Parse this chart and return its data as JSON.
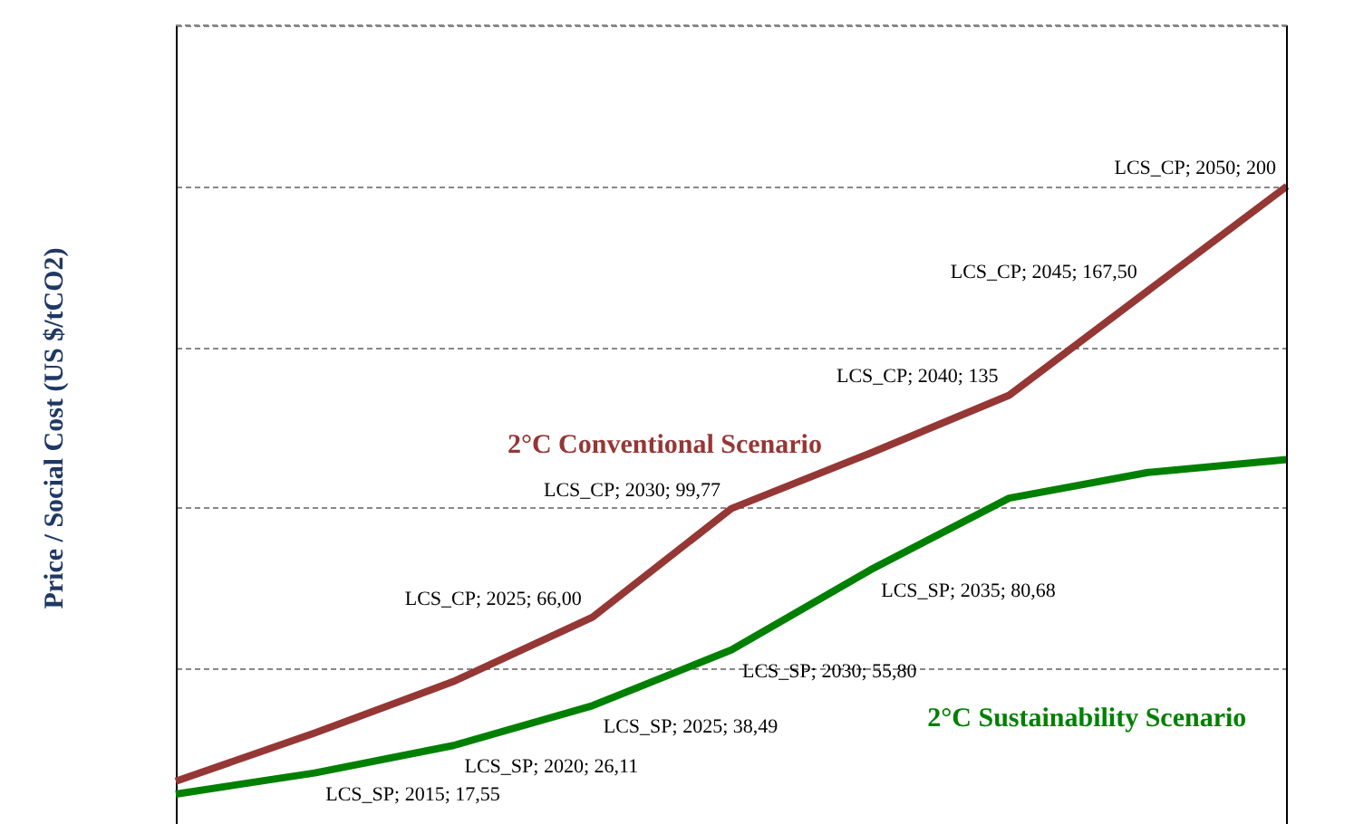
{
  "chart_data": {
    "type": "line",
    "ylabel": "Price / Social Cost  (US $/tCO2)",
    "categories": [
      null,
      null,
      null,
      null,
      null,
      null,
      null,
      null,
      null
    ],
    "ylim": [
      0,
      250
    ],
    "yticks": [
      {
        "value": 50,
        "label": null
      },
      {
        "value": 100,
        "label": null
      },
      {
        "value": 150,
        "label": null
      },
      {
        "value": 200,
        "label": null
      },
      {
        "value": 250,
        "label": null
      }
    ],
    "tick_labels": false,
    "grid": "y",
    "legend": false,
    "marker": "none",
    "line_style": "solid",
    "series": [
      {
        "color": "#953735",
        "values": [
          15,
          30,
          46,
          66,
          99.77,
          117,
          135,
          167.5,
          200
        ],
        "value_labels": [
          null,
          null,
          null,
          "LCS_CP; 2025; 66,00",
          "LCS_CP; 2030; 99,77",
          null,
          "LCS_CP; 2040; 135",
          "LCS_CP; 2045; 167,50",
          "LCS_CP; 2050; 200"
        ]
      },
      {
        "color": "#008000",
        "values": [
          11,
          17.55,
          26.11,
          38.49,
          55.8,
          80.68,
          103,
          111,
          115
        ],
        "value_labels": [
          null,
          "LCS_SP; 2015; 17,55",
          "LCS_SP; 2020; 26,11",
          "LCS_SP; 2025; 38,49",
          "LCS_SP; 2030; 55,80",
          "LCS_SP; 2035; 80,68",
          null,
          null,
          null
        ]
      }
    ],
    "annotations": [
      "2°C Conventional Scenario",
      "2°C Sustainability Scenario"
    ]
  }
}
